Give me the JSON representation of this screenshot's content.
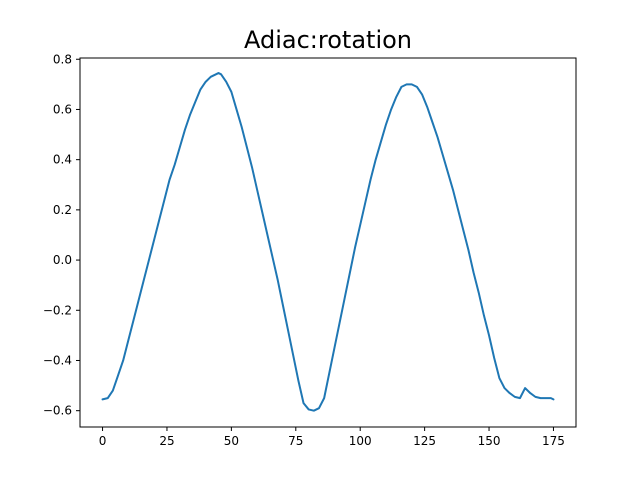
{
  "chart_data": {
    "type": "line",
    "title": "Adiac:rotation",
    "xlabel": "",
    "ylabel": "",
    "xlim": [
      -8.75,
      183.75
    ],
    "ylim": [
      -0.665,
      0.805
    ],
    "xticks": [
      0,
      25,
      50,
      75,
      100,
      125,
      150,
      175
    ],
    "xtick_labels": [
      "0",
      "25",
      "50",
      "75",
      "100",
      "125",
      "150",
      "175"
    ],
    "yticks": [
      -0.6,
      -0.4,
      -0.2,
      0.0,
      0.2,
      0.4,
      0.6,
      0.8
    ],
    "ytick_labels": [
      "−0.6",
      "−0.4",
      "−0.2",
      "0.0",
      "0.2",
      "0.4",
      "0.6",
      "0.8"
    ],
    "grid": false,
    "legend": false,
    "series": [
      {
        "color": "#1f77b4",
        "x": [
          0,
          2,
          4,
          6,
          8,
          10,
          12,
          14,
          16,
          18,
          20,
          22,
          24,
          26,
          28,
          30,
          32,
          34,
          36,
          38,
          40,
          42,
          44,
          45,
          46,
          48,
          50,
          52,
          54,
          56,
          58,
          60,
          62,
          64,
          66,
          68,
          70,
          72,
          74,
          76,
          78,
          80,
          82,
          84,
          86,
          88,
          90,
          92,
          94,
          96,
          98,
          100,
          102,
          104,
          106,
          108,
          110,
          112,
          114,
          116,
          118,
          120,
          122,
          124,
          126,
          128,
          130,
          132,
          134,
          136,
          138,
          140,
          142,
          144,
          146,
          148,
          150,
          152,
          154,
          156,
          158,
          160,
          162,
          164,
          166,
          168,
          170,
          172,
          174,
          175
        ],
        "y": [
          -0.555,
          -0.55,
          -0.52,
          -0.46,
          -0.4,
          -0.32,
          -0.24,
          -0.16,
          -0.08,
          0.0,
          0.08,
          0.16,
          0.24,
          0.32,
          0.38,
          0.45,
          0.52,
          0.58,
          0.63,
          0.68,
          0.71,
          0.73,
          0.74,
          0.745,
          0.74,
          0.71,
          0.67,
          0.6,
          0.53,
          0.45,
          0.37,
          0.28,
          0.19,
          0.1,
          0.01,
          -0.08,
          -0.18,
          -0.28,
          -0.38,
          -0.48,
          -0.57,
          -0.595,
          -0.6,
          -0.59,
          -0.55,
          -0.45,
          -0.35,
          -0.25,
          -0.15,
          -0.05,
          0.05,
          0.14,
          0.23,
          0.32,
          0.4,
          0.47,
          0.54,
          0.6,
          0.65,
          0.69,
          0.7,
          0.7,
          0.69,
          0.66,
          0.61,
          0.55,
          0.49,
          0.42,
          0.35,
          0.28,
          0.2,
          0.12,
          0.04,
          -0.05,
          -0.13,
          -0.22,
          -0.3,
          -0.39,
          -0.47,
          -0.51,
          -0.53,
          -0.545,
          -0.55,
          -0.51,
          -0.53,
          -0.545,
          -0.55,
          -0.55,
          -0.55,
          -0.555
        ]
      }
    ]
  }
}
